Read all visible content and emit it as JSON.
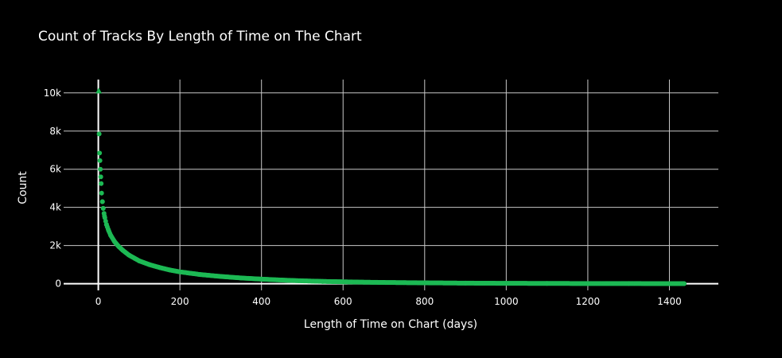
{
  "chart_data": {
    "type": "scatter",
    "title": "Count of Tracks By Length of Time on The Chart",
    "xlabel": "Length of Time on Chart (days)",
    "ylabel": "Count",
    "xlim": [
      -85,
      1520
    ],
    "ylim": [
      -350,
      10700
    ],
    "x_ticks": [
      0,
      200,
      400,
      600,
      800,
      1000,
      1200,
      1400
    ],
    "x_tick_labels": [
      "0",
      "200",
      "400",
      "600",
      "800",
      "1000",
      "1200",
      "1400"
    ],
    "y_ticks": [
      0,
      2000,
      4000,
      6000,
      8000,
      10000
    ],
    "y_tick_labels": [
      "0",
      "2k",
      "4k",
      "6k",
      "8k",
      "10k"
    ],
    "grid": true,
    "legend": "none",
    "marker_color": "#1db954",
    "first_marker": "triangle",
    "series": [
      {
        "x": [
          1,
          2,
          3,
          4,
          5,
          6,
          7,
          8,
          10,
          12,
          15,
          20,
          25,
          30,
          40,
          50,
          60,
          75,
          100,
          125,
          150,
          175,
          200,
          250,
          300,
          350,
          400,
          450,
          500,
          550,
          600,
          650,
          700,
          800,
          900,
          1000,
          1100,
          1200,
          1300,
          1400,
          1436
        ],
        "y": [
          10100,
          7850,
          6850,
          6450,
          6000,
          5600,
          5250,
          4750,
          4300,
          3950,
          3550,
          3100,
          2800,
          2550,
          2200,
          1950,
          1750,
          1500,
          1200,
          1000,
          850,
          720,
          620,
          480,
          380,
          300,
          240,
          190,
          150,
          120,
          100,
          80,
          65,
          45,
          30,
          20,
          15,
          10,
          8,
          5,
          3
        ]
      }
    ]
  }
}
